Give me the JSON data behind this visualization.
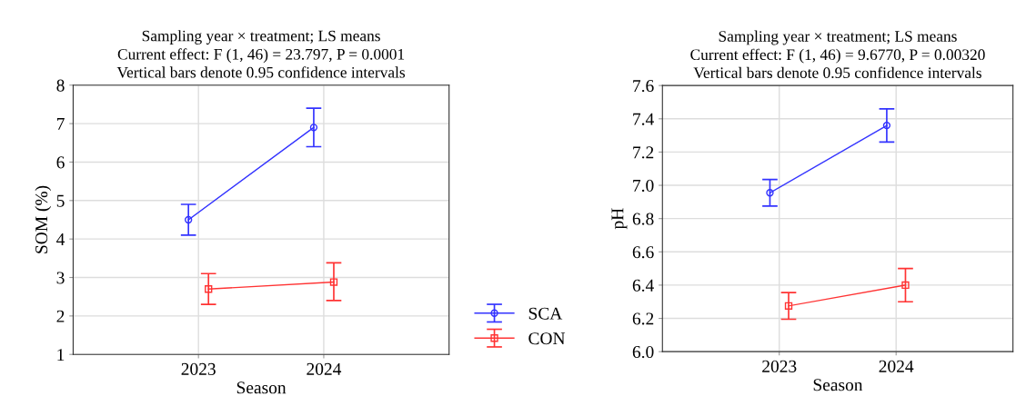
{
  "chart_data": [
    {
      "type": "line",
      "title": "Sampling year × treatment; LS means\nCurrent effect: F (1, 46) = 23.797, P = 0.0001\nVertical bars denote 0.95 confidence intervals",
      "xlabel": "Season",
      "ylabel": "SOM (%)",
      "categories": [
        "2023",
        "2024"
      ],
      "ylim": [
        1,
        8
      ],
      "yticks": [
        1,
        2,
        3,
        4,
        5,
        6,
        7,
        8
      ],
      "grid": true,
      "legend": "right",
      "series": [
        {
          "name": "SCA",
          "color": "#3333ff",
          "marker": "circle",
          "values": [
            4.5,
            6.9
          ],
          "errors": [
            [
              4.1,
              4.9
            ],
            [
              6.4,
              7.4
            ]
          ]
        },
        {
          "name": "CON",
          "color": "#ff3333",
          "marker": "square",
          "values": [
            2.7,
            2.88
          ],
          "errors": [
            [
              2.3,
              3.1
            ],
            [
              2.4,
              3.38
            ]
          ]
        }
      ]
    },
    {
      "type": "line",
      "title": "Sampling year × treatment; LS means\nCurrent effect: F (1, 46) = 9.6770, P = 0.00320\nVertical bars denote 0.95 confidence intervals",
      "xlabel": "Season",
      "ylabel": "pH",
      "categories": [
        "2023",
        "2024"
      ],
      "ylim": [
        6.0,
        7.6
      ],
      "yticks": [
        {
          "value": 6.0,
          "label": "6.0"
        },
        6.2,
        6.4,
        6.6,
        6.8,
        {
          "value": 7.0,
          "label": "7.0"
        },
        7.2,
        7.4,
        7.6
      ],
      "grid": true,
      "series": [
        {
          "color": "#3333ff",
          "marker": "circle",
          "values": [
            6.955,
            7.36
          ],
          "errors": [
            [
              6.875,
              7.035
            ],
            [
              7.26,
              7.46
            ]
          ]
        },
        {
          "color": "#ff3333",
          "marker": "square",
          "values": [
            6.275,
            6.4
          ],
          "errors": [
            [
              6.195,
              6.355
            ],
            [
              6.3,
              6.5
            ]
          ]
        }
      ]
    }
  ]
}
